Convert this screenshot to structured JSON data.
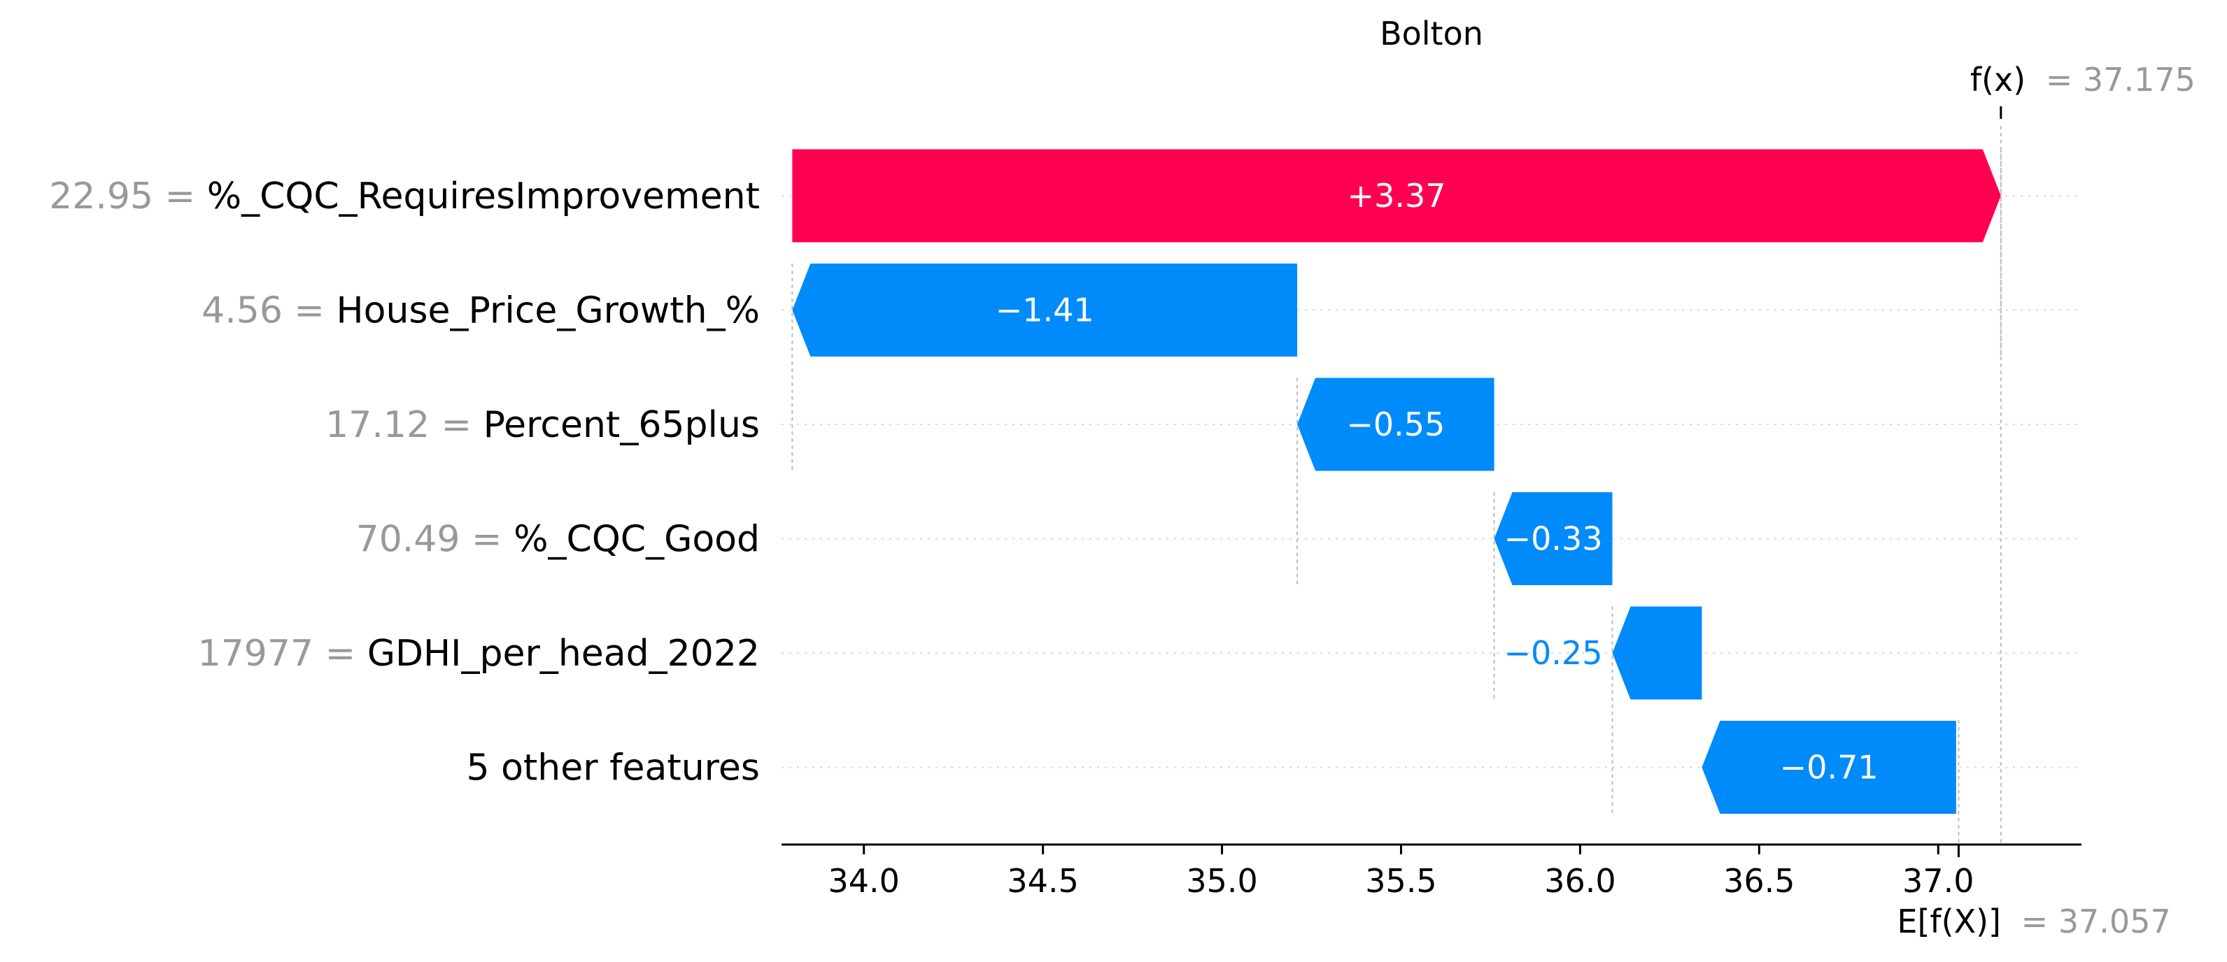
{
  "chart_data": {
    "type": "bar",
    "title": "Bolton",
    "base_value": 37.057,
    "base_value_label_prefix": "E[f(X)]",
    "base_value_label_value": "= 37.057",
    "output_value": 37.175,
    "output_value_label_prefix": "f(x)",
    "output_value_label_value": "= 37.175",
    "features": [
      {
        "value_text": "22.95 =",
        "name": "%_CQC_RequiresImprovement",
        "contribution": 3.37,
        "label": "+3.37",
        "start": 33.8,
        "end": 37.175
      },
      {
        "value_text": "4.56 =",
        "name": "House_Price_Growth_%",
        "contribution": -1.41,
        "label": "−1.41",
        "start": 35.21,
        "end": 33.8
      },
      {
        "value_text": "17.12 =",
        "name": "Percent_65plus",
        "contribution": -0.55,
        "label": "−0.55",
        "start": 35.76,
        "end": 35.21
      },
      {
        "value_text": "70.49 =",
        "name": "%_CQC_Good",
        "contribution": -0.33,
        "label": "−0.33",
        "start": 36.09,
        "end": 35.76
      },
      {
        "value_text": "17977 =",
        "name": "GDHI_per_head_2022",
        "contribution": -0.25,
        "label": "−0.25",
        "start": 36.34,
        "end": 36.09
      },
      {
        "value_text": "",
        "name": "5 other features",
        "contribution": -0.71,
        "label": "−0.71",
        "start": 37.05,
        "end": 36.34
      }
    ],
    "x_ticks": [
      "34.0",
      "34.5",
      "35.0",
      "35.5",
      "36.0",
      "36.5",
      "37.0"
    ],
    "x_tick_values": [
      34.0,
      34.5,
      35.0,
      35.5,
      36.0,
      36.5,
      37.0
    ],
    "xlim": [
      33.77,
      37.4
    ],
    "grid": false,
    "colors": {
      "positive": "#ff0051",
      "negative": "#008bfb",
      "muted": "#999999"
    }
  }
}
